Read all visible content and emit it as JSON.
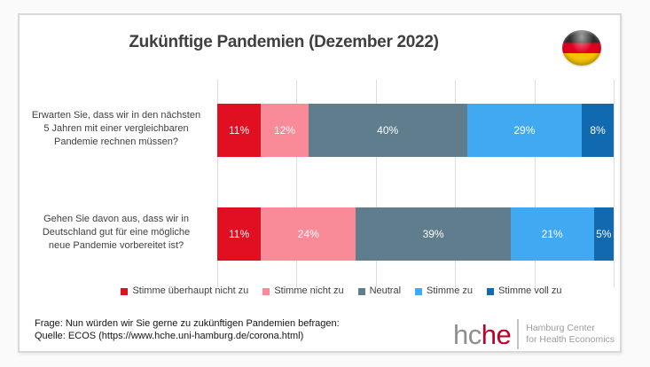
{
  "title": "Zukünftige Pandemien (Dezember 2022)",
  "flag": {
    "name": "germany-flag",
    "colors": [
      "#2E2E2E",
      "#DD0020",
      "#F5C400"
    ]
  },
  "chart_data": {
    "type": "bar",
    "orientation": "horizontal",
    "stacked": true,
    "unit": "%",
    "title": "Zukünftige Pandemien (Dezember 2022)",
    "categories": [
      "Erwarten Sie, dass wir in den nächsten\n5 Jahren mit einer vergleichbaren\nPandemie rechnen müssen?",
      "Gehen Sie davon aus, dass wir in\nDeutschland gut für eine mögliche\nneue Pandemie vorbereitet ist?"
    ],
    "series": [
      {
        "name": "Stimme überhaupt nicht zu",
        "color": "#E01022",
        "values": [
          11,
          11
        ]
      },
      {
        "name": "Stimme nicht zu",
        "color": "#F98B98",
        "values": [
          12,
          24
        ]
      },
      {
        "name": "Neutral",
        "color": "#5F7D8C",
        "values": [
          40,
          39
        ]
      },
      {
        "name": "Stimme zu",
        "color": "#41A9F1",
        "values": [
          29,
          21
        ]
      },
      {
        "name": "Stimme voll zu",
        "color": "#1169B0",
        "values": [
          8,
          5
        ]
      }
    ],
    "xlim": [
      0,
      100
    ],
    "gridline_interval": 20,
    "grid": true,
    "legend_position": "bottom",
    "value_labels": "inside-white-percent"
  },
  "footer": {
    "frage": "Frage: Nun würden wir Sie gerne zu zukünftigen Pandemien befragen:",
    "quelle": "Quelle: ECOS (https://www.hche.uni-hamburg.de/corona.html)"
  },
  "logo": {
    "part_gray": "hc",
    "part_red": "he",
    "tagline_line1": "Hamburg Center",
    "tagline_line2": "for Health Economics",
    "gray_color": "#8E8E8E",
    "red_color": "#C10028"
  }
}
